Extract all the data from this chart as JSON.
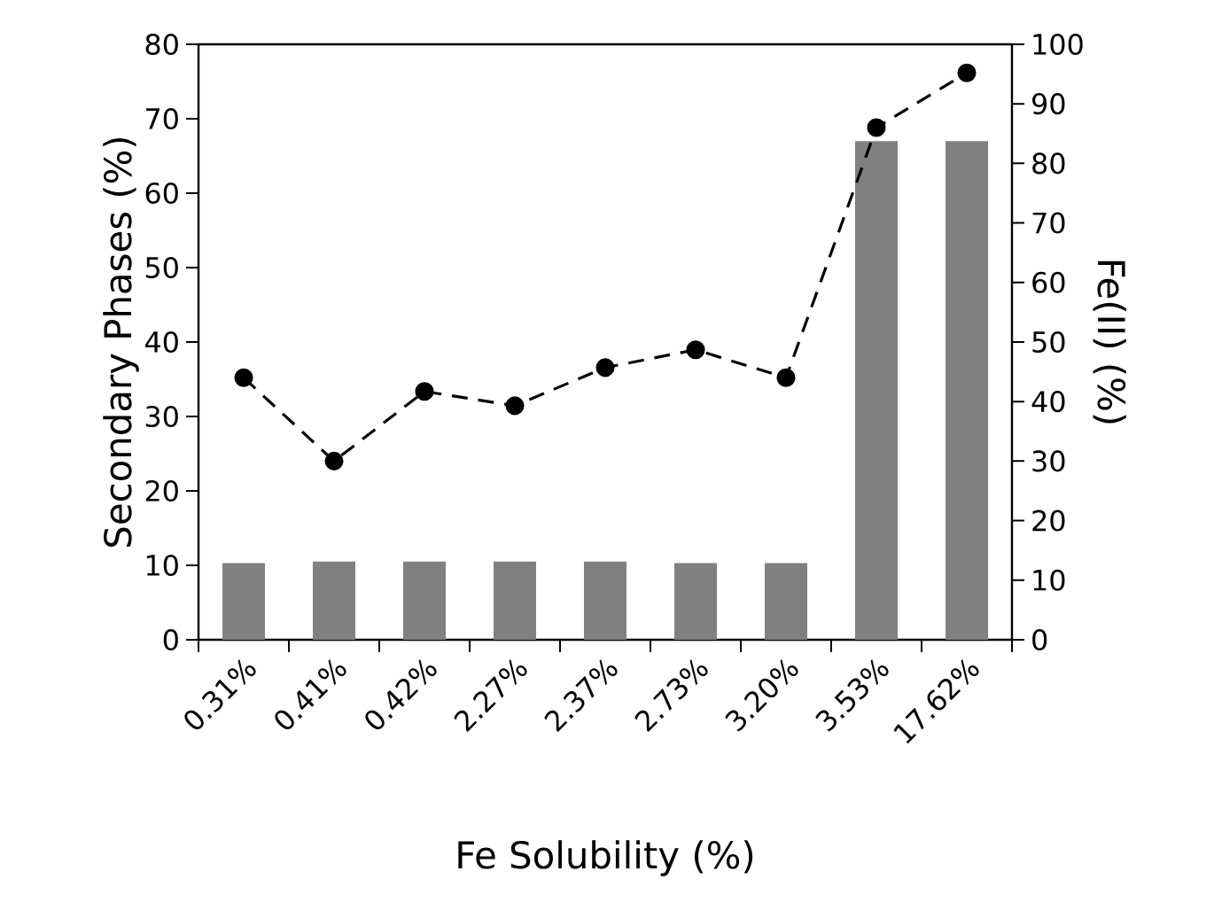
{
  "chart_data": {
    "type": "bar",
    "xlabel": "Fe Solubility (%)",
    "ylabel": "Secondary Phases (%)",
    "y2label": "Fe(II) (%)",
    "categories": [
      "0.31%",
      "0.41%",
      "0.42%",
      "2.27%",
      "2.37%",
      "2.73%",
      "3.20%",
      "3.53%",
      "17.62%"
    ],
    "series": [
      {
        "color": "#808080",
        "values": [
          10.3,
          10.5,
          10.5,
          10.5,
          10.5,
          10.3,
          10.3,
          67,
          67
        ]
      },
      {
        "type": "line",
        "axis": "y2",
        "color": "#000000",
        "marker": "circle",
        "line_style": "dashed",
        "values": [
          44,
          30,
          41.7,
          39.3,
          45.7,
          48.7,
          44,
          86,
          95.2
        ]
      }
    ],
    "ylim": [
      0,
      80
    ],
    "yticks": [
      0,
      10,
      20,
      30,
      40,
      50,
      60,
      70,
      80
    ],
    "y2lim": [
      0,
      100
    ],
    "y2ticks": [
      0,
      10,
      20,
      30,
      40,
      50,
      60,
      70,
      80,
      90,
      100
    ],
    "grid": false
  }
}
